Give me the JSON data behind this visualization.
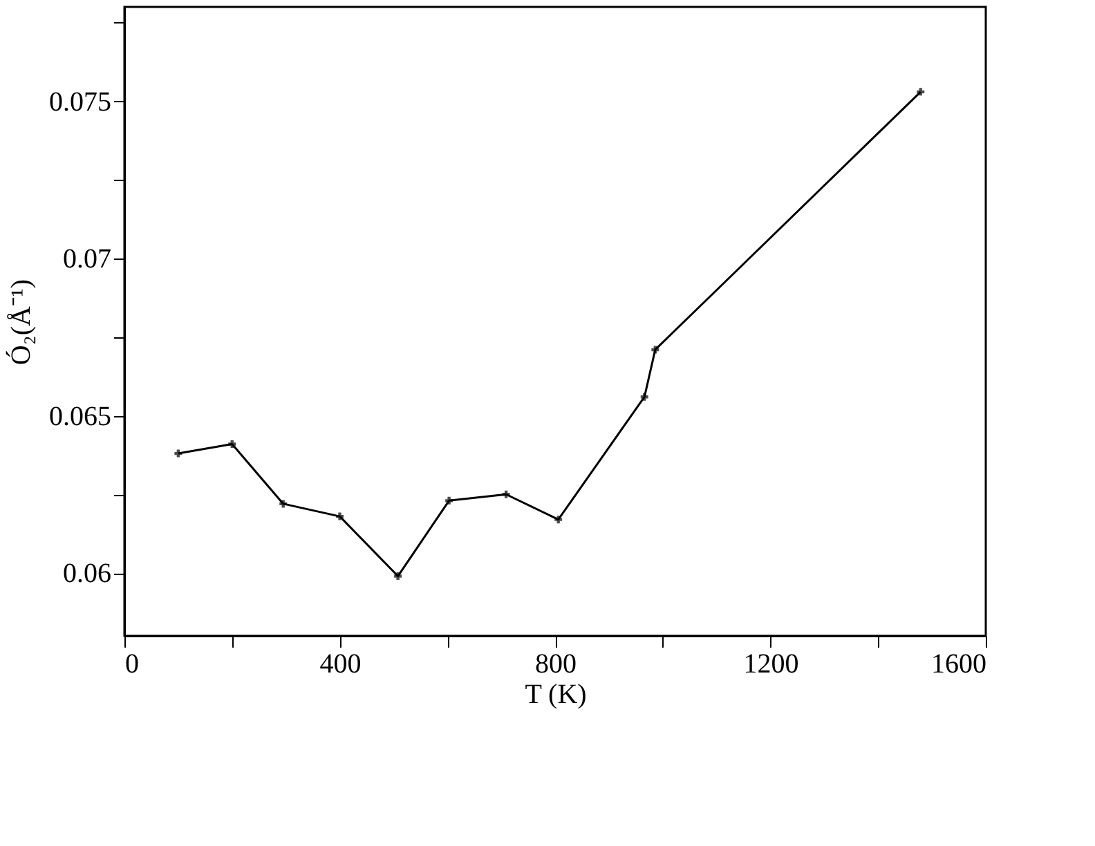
{
  "chart_data": {
    "type": "line",
    "xlabel": "T (K)",
    "ylabel": "Ó₂(Å⁻¹)",
    "x": [
      100,
      200,
      295,
      400,
      508,
      603,
      709,
      806,
      966,
      986,
      1479
    ],
    "series": [
      {
        "color": "#000000",
        "values": [
          0.0638,
          0.0641,
          0.0622,
          0.0618,
          0.0599,
          0.0623,
          0.0625,
          0.0617,
          0.0656,
          0.0671,
          0.0753
        ]
      }
    ],
    "xlim": [
      0,
      1600
    ],
    "xticks": [
      0,
      {
        "value": 200,
        "label": null
      },
      400,
      {
        "value": 600,
        "label": null
      },
      800,
      {
        "value": 1000,
        "label": null
      },
      1200,
      {
        "value": 1400,
        "label": null
      },
      1600
    ],
    "ylim": [
      0.058,
      0.078
    ],
    "yticks": [
      0.06,
      {
        "value": 0.0625,
        "label": null
      },
      0.065,
      {
        "value": 0.0675,
        "label": null
      },
      0.07,
      {
        "value": 0.0725,
        "label": null
      },
      0.075,
      {
        "value": 0.0775,
        "label": null
      }
    ],
    "grid": false,
    "marker": "cross",
    "line_style": "solid"
  }
}
